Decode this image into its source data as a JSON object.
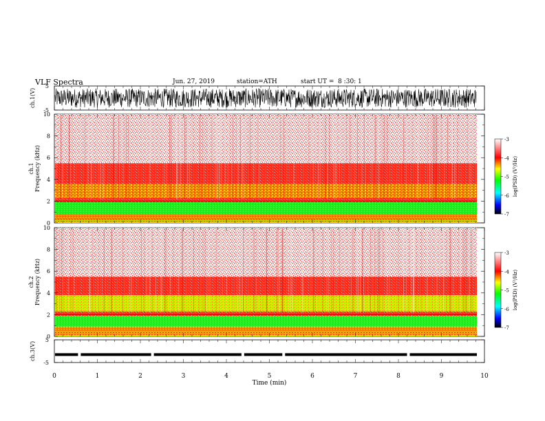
{
  "header": {
    "title": "VLF Spectra",
    "date": "Jun. 27, 2019",
    "station": "station=ATH",
    "start": "start UT =  8 :30: 1"
  },
  "chart_data": [
    {
      "type": "line",
      "panel": "ch1-waveform",
      "ylabel": "ch.1(V)",
      "ylim": [
        -5,
        5
      ],
      "yticks": [
        "5",
        "-5"
      ],
      "xlim": [
        0,
        10
      ],
      "series": [
        {
          "description": "dense broadband noise",
          "amplitude_range": [
            -4,
            4
          ]
        }
      ]
    },
    {
      "type": "heatmap",
      "panel": "ch1-spectrogram",
      "ylabel": "Frequency (kHz)",
      "channel_label": "ch.1",
      "ylim": [
        0,
        10
      ],
      "yticks": [
        "0",
        "2",
        "4",
        "6",
        "8",
        "10"
      ],
      "xlim": [
        0,
        9.8
      ],
      "bands": [
        {
          "range_khz": [
            0,
            0.4
          ],
          "level": "yellow-red mix"
        },
        {
          "range_khz": [
            0.4,
            0.8
          ],
          "level": "red/orange lines"
        },
        {
          "range_khz": [
            0.8,
            1.9
          ],
          "level": "green"
        },
        {
          "range_khz": [
            1.9,
            2.3
          ],
          "level": "red"
        },
        {
          "range_khz": [
            2.3,
            3.6
          ],
          "level": "yellow-orange"
        },
        {
          "range_khz": [
            3.6,
            5.5
          ],
          "level": "red"
        },
        {
          "range_khz": [
            5.5,
            10
          ],
          "level": "light red speckle"
        }
      ],
      "colorbar": {
        "label": "log(PSD) (V²/Hz)",
        "ticks": [
          "-3",
          "-4",
          "-5",
          "-6",
          "-7"
        ],
        "range": [
          -7,
          -3
        ]
      }
    },
    {
      "type": "heatmap",
      "panel": "ch2-spectrogram",
      "ylabel": "Frequency (kHz)",
      "channel_label": "ch.2",
      "ylim": [
        0,
        10
      ],
      "yticks": [
        "0",
        "2",
        "4",
        "6",
        "8",
        "10"
      ],
      "xlim": [
        0,
        9.8
      ],
      "bands": [
        {
          "range_khz": [
            0,
            0.5
          ],
          "level": "yellow-red lines"
        },
        {
          "range_khz": [
            0.5,
            0.9
          ],
          "level": "orange"
        },
        {
          "range_khz": [
            0.9,
            1.9
          ],
          "level": "green"
        },
        {
          "range_khz": [
            1.9,
            2.3
          ],
          "level": "red"
        },
        {
          "range_khz": [
            2.3,
            3.8
          ],
          "level": "yellow-green"
        },
        {
          "range_khz": [
            3.8,
            5.5
          ],
          "level": "red"
        },
        {
          "range_khz": [
            5.5,
            10
          ],
          "level": "light red speckle"
        }
      ],
      "colorbar": {
        "label": "log(PSD) (V²/Hz)",
        "ticks": [
          "-3",
          "-4",
          "-5",
          "-6",
          "-7"
        ],
        "range": [
          -7,
          -3
        ]
      }
    },
    {
      "type": "line",
      "panel": "ch3-waveform",
      "ylabel": "ch.3(V)",
      "ylim": [
        -5,
        5
      ],
      "yticks": [
        "5",
        "-5"
      ],
      "xlim": [
        0,
        10
      ],
      "series": [
        {
          "description": "nearly constant trace",
          "level": -1.5,
          "gaps_min": [
            0.55,
            2.25,
            4.35,
            5.3,
            8.2
          ]
        }
      ]
    }
  ],
  "xaxis": {
    "label": "Time  (min)",
    "ticks": [
      "0",
      "1",
      "2",
      "3",
      "4",
      "5",
      "6",
      "7",
      "8",
      "9",
      "10"
    ],
    "range": [
      0,
      10
    ]
  },
  "colors": {
    "frame": "#000000",
    "scale": [
      "#000000",
      "#0000ff",
      "#00ffff",
      "#00ff00",
      "#ffff00",
      "#ff0000",
      "#ffffff"
    ]
  }
}
